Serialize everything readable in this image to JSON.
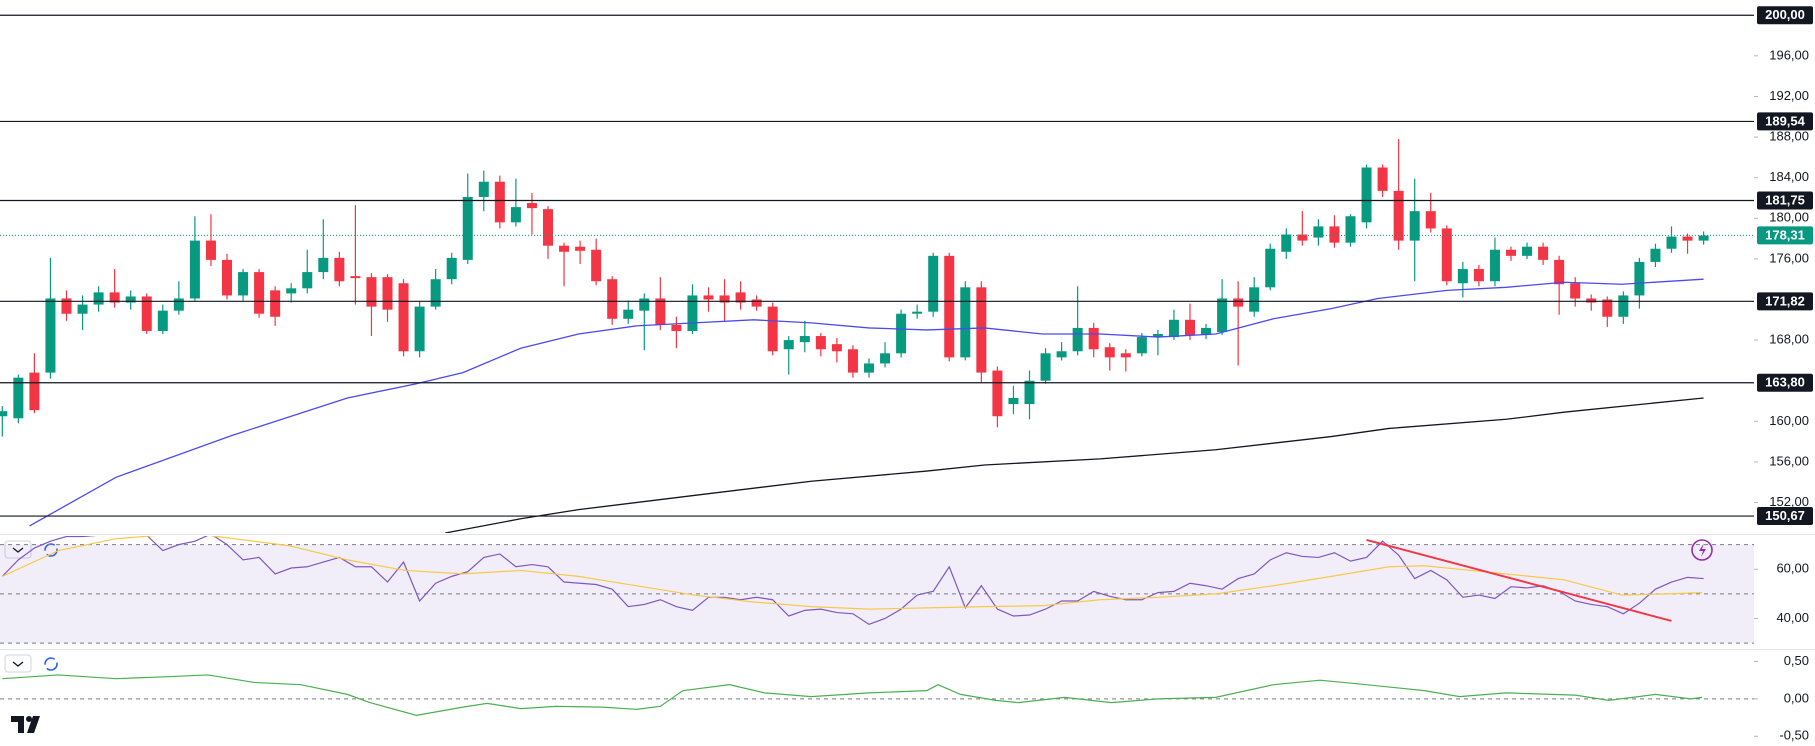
{
  "chart_data": [
    {
      "type": "candlestick",
      "up_color": "#089981",
      "down_color": "#f23645",
      "open": [
        160.5,
        160.3,
        164.8,
        164.8,
        172.1,
        170.6,
        171.5,
        172.7,
        171.7,
        172.3,
        168.9,
        170.9,
        172.1,
        177.8,
        175.9,
        172.4,
        174.7,
        172.9,
        172.6,
        173.1,
        174.7,
        176.1,
        174.3,
        174.2,
        174.2,
        173.6,
        166.9,
        171.3,
        174.0,
        175.9,
        182.1,
        183.6,
        179.6,
        181.5,
        180.9,
        177.3,
        177.2,
        176.9,
        174.0,
        170.1,
        170.9,
        172.1,
        169.5,
        168.9,
        172.4,
        172.4,
        172.7,
        172.0,
        171.3,
        167.1,
        167.8,
        168.4,
        167.6,
        167.1,
        164.8,
        165.7,
        166.7,
        170.6,
        170.8,
        176.3,
        166.3,
        173.2,
        165.0,
        161.7,
        161.7,
        164.0,
        166.3,
        166.9,
        169.2,
        167.3,
        166.7,
        166.7,
        168.3,
        168.3,
        170.0,
        168.5,
        168.8,
        172.1,
        170.8,
        173.2,
        176.7,
        178.4,
        178.1,
        179.2,
        177.6,
        179.6,
        185.0,
        182.7,
        177.8,
        180.7,
        179.0,
        173.6,
        175.0,
        173.8,
        176.9,
        176.3,
        177.2,
        175.9,
        173.6,
        172.1,
        172.0,
        170.3,
        172.4,
        175.7,
        177.0,
        178.2,
        177.8
      ],
      "high": [
        161.5,
        164.6,
        166.7,
        176.1,
        172.9,
        172.4,
        173.3,
        175.0,
        172.9,
        172.6,
        171.5,
        173.8,
        180.2,
        180.4,
        176.5,
        175.0,
        175.0,
        173.3,
        173.6,
        176.9,
        179.9,
        176.7,
        181.3,
        174.6,
        174.5,
        174.0,
        171.8,
        175.0,
        176.6,
        184.4,
        184.7,
        184.2,
        183.9,
        182.5,
        181.2,
        177.6,
        177.8,
        178.0,
        174.3,
        171.9,
        172.6,
        174.2,
        170.3,
        173.5,
        173.2,
        174.0,
        173.8,
        172.4,
        171.7,
        168.4,
        169.9,
        168.7,
        168.2,
        167.5,
        166.2,
        167.8,
        171.0,
        171.5,
        176.6,
        176.6,
        173.8,
        173.8,
        165.4,
        163.5,
        165.0,
        167.2,
        167.8,
        173.3,
        169.7,
        167.7,
        167.1,
        168.7,
        169.0,
        171.0,
        171.6,
        169.6,
        174.0,
        173.8,
        174.2,
        177.5,
        179.0,
        180.7,
        179.9,
        180.3,
        180.4,
        185.3,
        185.3,
        187.8,
        183.9,
        182.5,
        179.3,
        175.7,
        175.4,
        178.1,
        177.2,
        177.6,
        177.6,
        176.3,
        174.2,
        172.5,
        172.3,
        172.8,
        176.1,
        177.5,
        179.2,
        178.5,
        178.7
      ],
      "low": [
        158.5,
        159.8,
        160.8,
        164.2,
        169.9,
        169.0,
        170.8,
        171.2,
        171.0,
        168.6,
        168.6,
        170.5,
        171.8,
        175.3,
        172.0,
        171.9,
        170.2,
        169.4,
        171.7,
        172.6,
        174.0,
        173.3,
        171.5,
        168.4,
        169.8,
        166.4,
        166.3,
        171.0,
        173.5,
        175.5,
        180.7,
        179.0,
        179.2,
        178.4,
        176.0,
        173.3,
        175.5,
        173.4,
        169.5,
        169.6,
        167.0,
        169.0,
        167.2,
        168.6,
        170.8,
        169.8,
        171.0,
        170.9,
        166.5,
        164.6,
        166.8,
        166.4,
        165.8,
        164.3,
        164.3,
        165.3,
        166.3,
        170.1,
        170.3,
        165.9,
        166.0,
        163.8,
        159.4,
        160.7,
        160.2,
        163.7,
        166.0,
        166.5,
        166.3,
        165.0,
        164.9,
        166.4,
        166.5,
        168.0,
        168.0,
        168.1,
        168.5,
        165.5,
        170.3,
        172.9,
        176.0,
        177.3,
        177.3,
        177.1,
        177.2,
        179.0,
        182.1,
        176.9,
        173.8,
        178.6,
        173.4,
        172.2,
        173.3,
        173.3,
        175.8,
        176.0,
        175.4,
        170.5,
        171.3,
        170.9,
        169.3,
        169.6,
        171.1,
        175.2,
        176.6,
        176.5,
        177.4
      ],
      "close": [
        161.0,
        164.3,
        161.1,
        172.1,
        170.6,
        171.5,
        172.7,
        171.7,
        172.3,
        168.9,
        170.9,
        172.1,
        177.8,
        175.9,
        172.4,
        174.7,
        170.6,
        170.3,
        173.1,
        174.7,
        176.1,
        173.8,
        174.1,
        171.3,
        171.0,
        166.9,
        171.3,
        174.0,
        176.1,
        182.1,
        183.6,
        179.6,
        181.1,
        181.0,
        177.3,
        176.7,
        176.8,
        173.8,
        170.1,
        171.0,
        172.1,
        169.5,
        168.9,
        172.4,
        172.0,
        171.7,
        171.7,
        171.3,
        166.9,
        168.0,
        168.4,
        167.1,
        166.9,
        164.8,
        165.7,
        166.7,
        170.6,
        170.8,
        176.3,
        166.3,
        173.2,
        164.8,
        160.5,
        162.3,
        164.0,
        166.7,
        166.9,
        169.2,
        167.1,
        166.3,
        166.3,
        168.3,
        168.6,
        170.0,
        168.5,
        169.2,
        172.1,
        171.3,
        173.2,
        177.0,
        178.4,
        177.8,
        179.2,
        177.6,
        180.2,
        185.0,
        182.7,
        177.8,
        180.7,
        179.0,
        173.8,
        175.0,
        173.8,
        176.9,
        176.3,
        177.2,
        175.9,
        173.5,
        172.1,
        171.7,
        170.3,
        172.4,
        175.7,
        177.0,
        178.2,
        177.8,
        178.3
      ],
      "ylim": [
        149,
        201.5
      ],
      "yticks": [
        {
          "value": 196,
          "label": "196,00"
        },
        {
          "value": 192,
          "label": "192,00"
        },
        {
          "value": 188,
          "label": "188,00"
        },
        {
          "value": 184,
          "label": "184,00"
        },
        {
          "value": 180,
          "label": "180,00"
        },
        {
          "value": 176,
          "label": "176,00"
        },
        {
          "value": 168,
          "label": "168,00"
        },
        {
          "value": 160,
          "label": "160,00"
        },
        {
          "value": 156,
          "label": "156,00"
        },
        {
          "value": 152,
          "label": "152,00"
        }
      ],
      "lines": [
        {
          "color": "#4a4af0",
          "x": [
            1.7,
            7.1,
            14.3,
            21.5,
            25.8,
            28.7,
            32.3,
            35.9,
            39.5,
            43.1,
            46.8,
            50.4,
            54,
            57.6,
            61.2,
            64.8,
            68.4,
            72,
            75.6,
            79.2,
            82.8,
            85.7,
            90,
            93.7,
            97.3,
            100.9,
            106
          ],
          "values": [
            149.7,
            154.5,
            158.6,
            162.3,
            163.7,
            164.8,
            167.2,
            168.6,
            169.4,
            169.7,
            170.0,
            169.7,
            169.2,
            169.0,
            169.2,
            168.6,
            168.6,
            168.3,
            168.6,
            170.1,
            171.1,
            172.1,
            172.9,
            173.2,
            173.7,
            173.5,
            174.0
          ]
        },
        {
          "color": "#131722",
          "x": [
            27.6,
            32.3,
            35.9,
            43.1,
            50.4,
            57.6,
            61.2,
            68.4,
            75.6,
            82.8,
            86.4,
            93.7,
            97.3,
            106
          ],
          "values": [
            149.0,
            150.4,
            151.3,
            152.7,
            154.1,
            155.1,
            155.7,
            156.3,
            157.2,
            158.5,
            159.3,
            160.2,
            160.9,
            162.3
          ]
        }
      ],
      "levels": [
        {
          "value": 200,
          "label": "200,00"
        },
        {
          "value": 189.54,
          "label": "189,54"
        },
        {
          "value": 181.75,
          "label": "181,75"
        },
        {
          "value": 171.82,
          "label": "171,82"
        },
        {
          "value": 163.8,
          "label": "163,80"
        },
        {
          "value": 150.67,
          "label": "150,67"
        }
      ],
      "last_price": {
        "value": 178.31,
        "label": "178,31",
        "color": "#089981"
      }
    },
    {
      "type": "line",
      "ylim": [
        28,
        73.5
      ],
      "yticks": [
        {
          "value": 60,
          "label": "60,00"
        },
        {
          "value": 40,
          "label": "40,00"
        }
      ],
      "band": [
        30,
        70
      ],
      "guides": [
        70,
        50,
        30
      ],
      "series": [
        {
          "color": "#7e57c2",
          "values": [
            57.1,
            63.8,
            68.6,
            71.4,
            73.3,
            73.3,
            73.8,
            74.3,
            74.8,
            73.8,
            67.6,
            70.0,
            71.4,
            74.3,
            70.0,
            63.8,
            64.8,
            58.1,
            60.5,
            61.0,
            62.9,
            64.8,
            61.0,
            61.0,
            54.8,
            62.9,
            47.1,
            54.3,
            57.1,
            59.0,
            64.8,
            66.2,
            61.0,
            61.9,
            61.0,
            54.8,
            54.3,
            53.8,
            51.9,
            44.8,
            45.7,
            47.6,
            44.8,
            43.3,
            48.6,
            48.6,
            47.6,
            48.6,
            47.6,
            41.0,
            43.3,
            43.8,
            42.4,
            41.9,
            37.6,
            40.0,
            43.8,
            49.5,
            51.0,
            61.0,
            44.3,
            53.3,
            43.8,
            41.0,
            41.4,
            43.8,
            47.1,
            47.1,
            51.0,
            49.0,
            47.6,
            47.6,
            50.5,
            51.0,
            54.3,
            53.3,
            51.9,
            56.2,
            58.1,
            63.8,
            66.7,
            65.2,
            64.8,
            66.7,
            63.3,
            64.8,
            71.4,
            65.7,
            56.2,
            59.5,
            55.7,
            48.6,
            49.5,
            48.1,
            52.9,
            52.4,
            53.3,
            51.0,
            47.1,
            45.7,
            44.8,
            41.9,
            46.2,
            51.9,
            54.8,
            56.7,
            56.2
          ]
        },
        {
          "color": "#f7c948",
          "x": [
            0,
            3.5,
            7.1,
            10.7,
            12.8,
            17.9,
            21.5,
            25.1,
            28.7,
            32.3,
            35.9,
            39.5,
            43.1,
            46.8,
            50.4,
            54,
            57.6,
            61.2,
            64.8,
            68.4,
            72,
            75.6,
            79.2,
            82.8,
            86.4,
            88.6,
            91.5,
            93.7,
            97.3,
            100.9,
            103.8,
            105.9
          ],
          "values": [
            57.1,
            67.6,
            72.4,
            74.3,
            73.8,
            69.5,
            63.8,
            59.5,
            58.1,
            59.5,
            57.1,
            53.3,
            49.5,
            46.7,
            44.8,
            43.8,
            44.3,
            44.8,
            45.2,
            47.6,
            48.6,
            50,
            53.3,
            57.1,
            61.0,
            61.4,
            59.5,
            58.1,
            55.7,
            49.5,
            50,
            50.5
          ]
        }
      ],
      "trendline": {
        "color": "#f23645",
        "x": [
          85,
          104
        ],
        "values": [
          71.9,
          39.0
        ]
      }
    },
    {
      "type": "line",
      "ylim": [
        -0.63,
        0.64
      ],
      "yticks": [
        {
          "value": 0.5,
          "label": "0,50"
        },
        {
          "value": 0,
          "label": "0,00"
        },
        {
          "value": -0.5,
          "label": "-0,50"
        }
      ],
      "guides": [
        0
      ],
      "series": [
        {
          "color": "#4caf50",
          "x": [
            0,
            3.5,
            7.1,
            10.7,
            12.8,
            15.7,
            18.6,
            21.5,
            22.9,
            25.8,
            28.7,
            30.2,
            32.3,
            34.5,
            37.4,
            39.5,
            41,
            42.4,
            45.3,
            47.5,
            50.4,
            54,
            57.6,
            58.3,
            59.7,
            61.9,
            63.3,
            66.2,
            69.1,
            72,
            75.6,
            79.2,
            82.1,
            85,
            88.6,
            90.8,
            93.7,
            98,
            100.1,
            103,
            105.2,
            105.9
          ],
          "values": [
            0.27,
            0.32,
            0.27,
            0.3,
            0.32,
            0.22,
            0.19,
            0.06,
            -0.05,
            -0.22,
            -0.11,
            -0.06,
            -0.13,
            -0.1,
            -0.11,
            -0.14,
            -0.1,
            0.11,
            0.19,
            0.08,
            0.03,
            0.08,
            0.11,
            0.19,
            0.06,
            -0.02,
            -0.05,
            0.02,
            -0.05,
            0,
            0.02,
            0.19,
            0.25,
            0.19,
            0.11,
            0.03,
            0.08,
            0.05,
            -0.02,
            0.06,
            0,
            0.02
          ]
        }
      ]
    }
  ]
}
